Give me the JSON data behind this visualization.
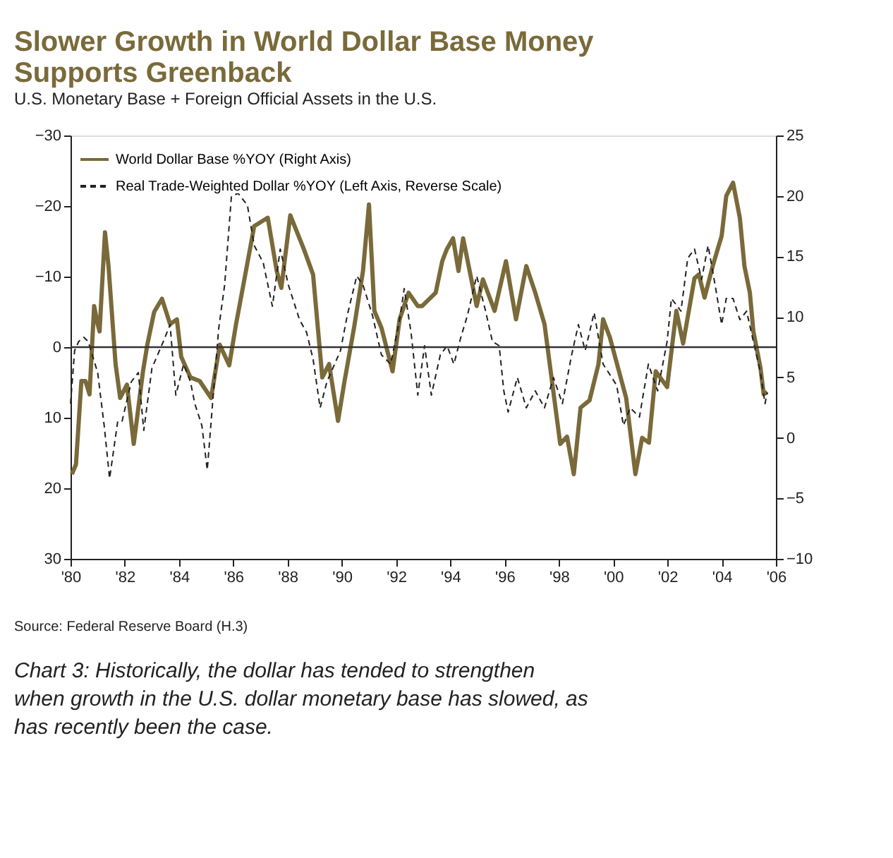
{
  "chart_data": {
    "type": "line",
    "title": [
      "Slower Growth in World Dollar Base Money",
      "Supports Greenback"
    ],
    "subtitle": "U.S. Monetary Base + Foreign Official Assets in the U.S.",
    "series": [
      {
        "name": "World Dollar Base %YOY (Right Axis)",
        "color": "#7a6a3a",
        "axis": "y2",
        "line_style": "solid",
        "x": [
          1980.05,
          1980.2,
          1980.4,
          1980.55,
          1980.7,
          1980.87,
          1981.0,
          1981.07,
          1981.27,
          1981.4,
          1981.66,
          1981.83,
          1982.08,
          1982.33,
          1982.67,
          1982.83,
          1983.08,
          1983.37,
          1983.67,
          1983.92,
          1984.08,
          1984.42,
          1984.76,
          1985.18,
          1985.5,
          1985.85,
          1986.1,
          1986.35,
          1986.77,
          1987.27,
          1987.6,
          1987.77,
          1988.1,
          1988.6,
          1988.94,
          1989.28,
          1989.53,
          1989.86,
          1990.1,
          1990.45,
          1990.78,
          1991.0,
          1991.2,
          1991.46,
          1991.87,
          1992.13,
          1992.46,
          1992.8,
          1992.96,
          1993.46,
          1993.7,
          1993.87,
          1994.1,
          1994.3,
          1994.47,
          1994.97,
          1995.2,
          1995.63,
          1996.05,
          1996.42,
          1996.8,
          1997.13,
          1997.47,
          1998.05,
          1998.3,
          1998.55,
          1998.8,
          1999.13,
          1999.46,
          1999.63,
          1999.88,
          2000.48,
          2000.82,
          2001.07,
          2001.32,
          2001.57,
          2001.99,
          2002.33,
          2002.58,
          2003.0,
          2003.16,
          2003.37,
          2003.67,
          2004.0,
          2004.17,
          2004.42,
          2004.67,
          2004.84,
          2005.04,
          2005.17,
          2005.43,
          2005.55,
          2005.68
        ],
        "values": [
          -3.0,
          -2.2,
          4.7,
          4.7,
          3.6,
          10.9,
          9.4,
          8.8,
          17.0,
          14.2,
          6.1,
          3.3,
          4.4,
          -0.5,
          5.5,
          7.7,
          10.4,
          11.5,
          9.4,
          9.8,
          6.7,
          5.0,
          4.7,
          3.3,
          7.7,
          6.0,
          9.4,
          12.4,
          17.5,
          18.2,
          13.8,
          12.4,
          18.4,
          15.6,
          13.5,
          5.0,
          6.1,
          1.4,
          4.7,
          9.1,
          13.8,
          19.3,
          10.5,
          9.1,
          5.5,
          9.8,
          12.0,
          10.9,
          10.9,
          12.0,
          14.6,
          15.6,
          16.5,
          13.8,
          16.5,
          10.9,
          13.1,
          10.5,
          14.6,
          9.8,
          14.2,
          12.0,
          9.4,
          -0.5,
          0.1,
          -3.0,
          2.5,
          3.1,
          6.1,
          9.8,
          8.3,
          3.3,
          -3.0,
          0.0,
          -0.4,
          5.5,
          4.2,
          10.5,
          7.8,
          13.2,
          13.5,
          11.6,
          14.2,
          16.7,
          20.0,
          21.1,
          18.2,
          14.2,
          12.0,
          8.8,
          5.8,
          3.6,
          3.8
        ]
      },
      {
        "name": "Real Trade-Weighted Dollar %YOY (Left Axis, Reverse Scale)",
        "color": "#222222",
        "axis": "y",
        "line_style": "dashed",
        "x": [
          1980.0,
          1980.15,
          1980.3,
          1980.49,
          1980.65,
          1981.0,
          1981.24,
          1981.44,
          1981.74,
          1981.9,
          1982.24,
          1982.5,
          1982.7,
          1983.0,
          1983.42,
          1983.67,
          1983.88,
          1984.17,
          1984.42,
          1984.58,
          1984.84,
          1985.04,
          1985.26,
          1985.46,
          1985.68,
          1985.93,
          1986.18,
          1986.52,
          1986.77,
          1987.1,
          1987.44,
          1987.73,
          1988.03,
          1988.44,
          1988.7,
          1988.94,
          1989.2,
          1989.45,
          1989.95,
          1990.2,
          1990.55,
          1990.78,
          1991.13,
          1991.46,
          1991.8,
          1992.13,
          1992.3,
          1992.55,
          1992.8,
          1993.05,
          1993.3,
          1993.63,
          1993.88,
          1994.13,
          1994.38,
          1994.63,
          1994.97,
          1995.3,
          1995.55,
          1995.8,
          1995.97,
          1996.13,
          1996.47,
          1996.8,
          1997.13,
          1997.47,
          1997.8,
          1998.13,
          1998.47,
          1998.72,
          1998.97,
          1999.3,
          1999.63,
          2000.13,
          2000.38,
          2000.63,
          2000.97,
          2001.3,
          2001.64,
          2001.99,
          2002.15,
          2002.5,
          2002.75,
          2003.0,
          2003.26,
          2003.5,
          2003.76,
          2004.0,
          2004.17,
          2004.42,
          2004.67,
          2004.92,
          2005.17,
          2005.43,
          2005.6,
          2005.68
        ],
        "values": [
          8.0,
          0.5,
          -0.8,
          -1.4,
          -0.8,
          3.6,
          11.1,
          18.6,
          10.5,
          10.5,
          4.9,
          3.6,
          11.8,
          3.0,
          -0.8,
          -3.2,
          6.8,
          2.4,
          4.9,
          8.0,
          11.1,
          17.4,
          6.8,
          -2.6,
          -8.8,
          -21.4,
          -21.8,
          -20.1,
          -14.4,
          -12.0,
          -5.8,
          -13.9,
          -8.8,
          -3.9,
          -2.1,
          1.7,
          8.6,
          4.9,
          0.5,
          -4.5,
          -10.1,
          -8.8,
          -4.5,
          1.1,
          2.4,
          -3.9,
          -8.3,
          -2.1,
          6.8,
          -0.2,
          6.8,
          1.1,
          -0.2,
          2.4,
          -1.3,
          -4.5,
          -10.1,
          -5.1,
          -0.8,
          -0.2,
          6.2,
          9.2,
          4.3,
          8.6,
          6.2,
          8.6,
          4.3,
          8.0,
          1.1,
          -3.2,
          0.5,
          -4.9,
          2.4,
          5.4,
          11.1,
          8.6,
          9.9,
          2.4,
          6.2,
          -0.8,
          -6.9,
          -5.1,
          -12.6,
          -13.9,
          -9.6,
          -14.4,
          -8.8,
          -3.2,
          -6.9,
          -6.9,
          -3.9,
          -5.1,
          -0.8,
          3.6,
          8.0,
          6.4
        ]
      }
    ],
    "xlim": [
      1980,
      2006
    ],
    "xticks": [
      {
        "value": 1980,
        "label": "'80"
      },
      {
        "value": 1982,
        "label": "'82"
      },
      {
        "value": 1984,
        "label": "'84"
      },
      {
        "value": 1986,
        "label": "'86"
      },
      {
        "value": 1988,
        "label": "'88"
      },
      {
        "value": 1990,
        "label": "'90"
      },
      {
        "value": 1992,
        "label": "'92"
      },
      {
        "value": 1994,
        "label": "'94"
      },
      {
        "value": 1996,
        "label": "'96"
      },
      {
        "value": 1998,
        "label": "'98"
      },
      {
        "value": 2000,
        "label": "'00"
      },
      {
        "value": 2002,
        "label": "'02"
      },
      {
        "value": 2004,
        "label": "'04"
      },
      {
        "value": 2006,
        "label": "'06"
      }
    ],
    "ylim": [
      30,
      -30
    ],
    "yticks": [
      -30,
      -20,
      -10,
      0,
      10,
      20,
      30
    ],
    "y2lim": [
      -10,
      25
    ],
    "y2ticks": [
      -10,
      -5,
      0,
      5,
      10,
      15,
      20,
      25
    ],
    "ref_lines": [
      {
        "axis": "y",
        "value": 0,
        "color": "#333333",
        "line_style": "solid"
      }
    ],
    "grid": false,
    "legend": "top left",
    "annotations": [
      "Source: Federal Reserve Board (H.3)",
      "Chart 3: Historically, the dollar has tended to strengthen when growth in the U.S. dollar monetary base has slowed, as has recently been the case."
    ]
  }
}
